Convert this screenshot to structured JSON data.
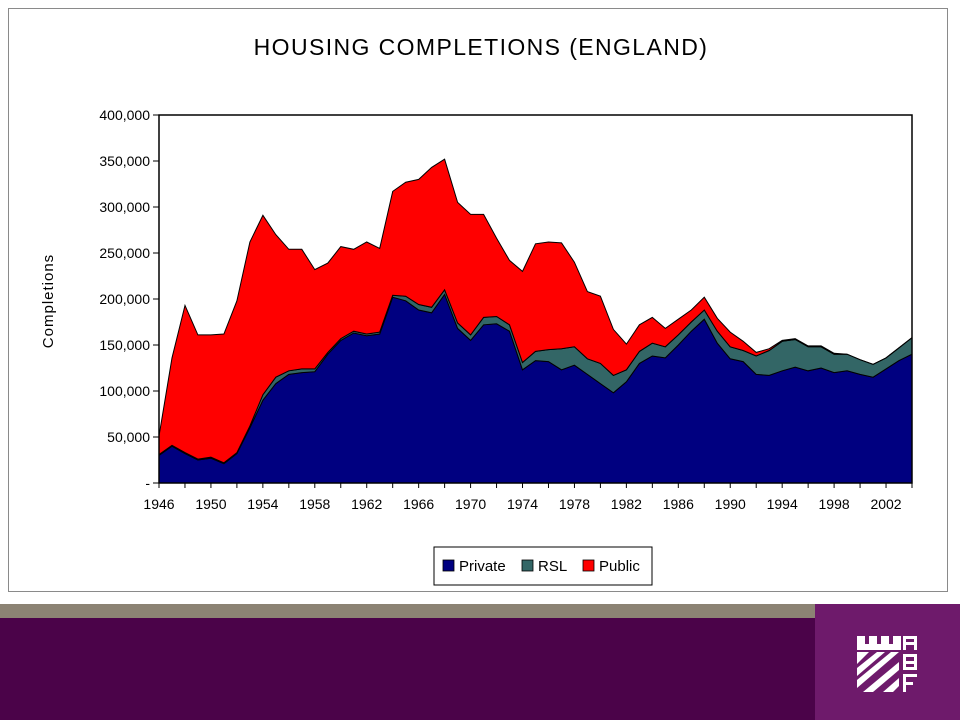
{
  "chart_data": {
    "type": "area",
    "stacked": true,
    "title": "HOUSING COMPLETIONS (ENGLAND)",
    "xlabel": "",
    "ylabel": "Completions",
    "ylim": [
      0,
      400000
    ],
    "xlim": [
      1946,
      2004
    ],
    "y_ticks": [
      0,
      50000,
      100000,
      150000,
      200000,
      250000,
      300000,
      350000,
      400000
    ],
    "y_tick_labels": [
      "-",
      "50,000",
      "100,000",
      "150,000",
      "200,000",
      "250,000",
      "300,000",
      "350,000",
      "400,000"
    ],
    "x_tick_labels": [
      "1946",
      "1950",
      "1954",
      "1958",
      "1962",
      "1966",
      "1970",
      "1974",
      "1978",
      "1982",
      "1986",
      "1990",
      "1994",
      "1998",
      "2002"
    ],
    "grid": false,
    "legend_position": "bottom",
    "years": [
      1946,
      1947,
      1948,
      1949,
      1950,
      1951,
      1952,
      1953,
      1954,
      1955,
      1956,
      1957,
      1958,
      1959,
      1960,
      1961,
      1962,
      1963,
      1964,
      1965,
      1966,
      1967,
      1968,
      1969,
      1970,
      1971,
      1972,
      1973,
      1974,
      1975,
      1976,
      1977,
      1978,
      1979,
      1980,
      1981,
      1982,
      1983,
      1984,
      1985,
      1986,
      1987,
      1988,
      1989,
      1990,
      1991,
      1992,
      1993,
      1994,
      1995,
      1996,
      1997,
      1998,
      1999,
      2000,
      2001,
      2002,
      2003,
      2004
    ],
    "series": [
      {
        "name": "Private",
        "color": "#000080",
        "values": [
          30000,
          40000,
          32000,
          25000,
          27000,
          21000,
          32000,
          60000,
          90000,
          108000,
          118000,
          120000,
          121000,
          140000,
          155000,
          163000,
          160000,
          162000,
          202000,
          198000,
          188000,
          185000,
          205000,
          168000,
          155000,
          172000,
          173000,
          165000,
          123000,
          133000,
          132000,
          123000,
          128000,
          118000,
          108000,
          98000,
          110000,
          130000,
          138000,
          136000,
          150000,
          165000,
          178000,
          152000,
          135000,
          132000,
          118000,
          117000,
          122000,
          126000,
          122000,
          125000,
          120000,
          122000,
          118000,
          115000,
          124000,
          133000,
          140000
        ]
      },
      {
        "name": "RSL",
        "color": "#336666",
        "values": [
          1000,
          1000,
          1000,
          1000,
          1000,
          1000,
          1000,
          2000,
          6000,
          7000,
          4000,
          4000,
          3000,
          2000,
          2000,
          2000,
          2000,
          2000,
          2000,
          5000,
          6000,
          6000,
          5000,
          6000,
          6000,
          8000,
          8000,
          7000,
          8000,
          10000,
          13000,
          23000,
          20000,
          17000,
          22000,
          19000,
          13000,
          13000,
          14000,
          12000,
          11000,
          10000,
          10000,
          13000,
          13000,
          12000,
          20000,
          27000,
          32000,
          30000,
          26000,
          23000,
          20000,
          18000,
          16000,
          14000,
          12000,
          14000,
          18000
        ]
      },
      {
        "name": "Public",
        "color": "#ff0000",
        "values": [
          20000,
          95000,
          160000,
          135000,
          133000,
          140000,
          165000,
          200000,
          195000,
          155000,
          132000,
          130000,
          108000,
          97000,
          100000,
          89000,
          100000,
          91000,
          113000,
          124000,
          136000,
          152000,
          142000,
          131000,
          131000,
          112000,
          85000,
          70000,
          99000,
          117000,
          117000,
          115000,
          92000,
          73000,
          73000,
          50000,
          28000,
          29000,
          28000,
          20000,
          17000,
          13000,
          14000,
          14000,
          16000,
          10000,
          4000,
          2000,
          1000,
          1000,
          1000,
          1000,
          1000,
          0,
          0,
          0,
          0,
          0,
          0
        ]
      }
    ]
  },
  "branding": {
    "logo_text": "HBF",
    "colors": {
      "footer": "#4b0349",
      "logo_box": "#6e1a6b",
      "stripe": "#8c8374"
    }
  }
}
